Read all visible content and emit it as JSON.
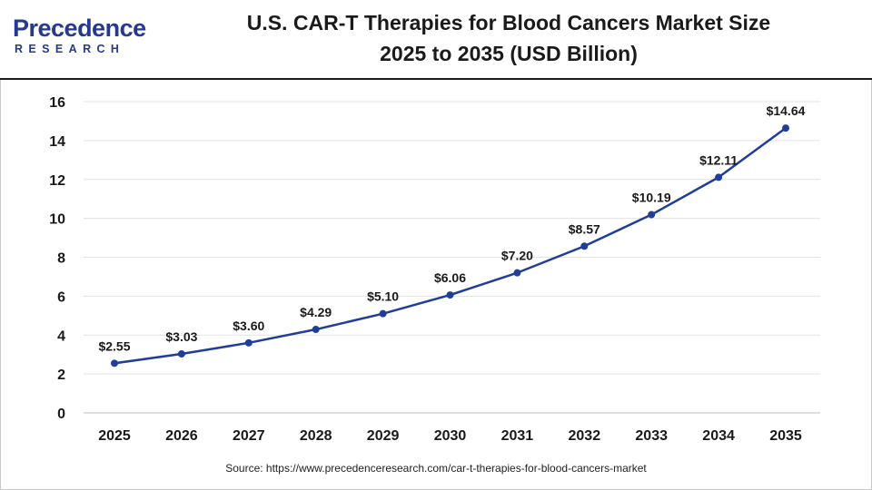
{
  "brand": {
    "name": "Precedence",
    "sub": "RESEARCH",
    "color": "#253a8f"
  },
  "header": {
    "title_line1": "U.S. CAR-T Therapies for Blood Cancers Market Size",
    "title_line2": "2025 to 2035 (USD Billion)"
  },
  "source": "Source: https://www.precedenceresearch.com/car-t-therapies-for-blood-cancers-market",
  "chart_data": {
    "type": "line",
    "title": "U.S. CAR-T Therapies for Blood Cancers Market Size 2025 to 2035 (USD Billion)",
    "xlabel": "",
    "ylabel": "",
    "categories": [
      "2025",
      "2026",
      "2027",
      "2028",
      "2029",
      "2030",
      "2031",
      "2032",
      "2033",
      "2034",
      "2035"
    ],
    "series": [
      {
        "values": [
          2.55,
          3.03,
          3.6,
          4.29,
          5.1,
          6.06,
          7.2,
          8.57,
          10.19,
          12.11,
          14.64
        ],
        "labels": [
          "$2.55",
          "$3.03",
          "$3.60",
          "$4.29",
          "$5.10",
          "$6.06",
          "$7.20",
          "$8.57",
          "$10.19",
          "$12.11",
          "$14.64"
        ],
        "color": "#1f3d99"
      }
    ],
    "ylim": [
      0,
      16
    ],
    "yticks": [
      0,
      2,
      4,
      6,
      8,
      10,
      12,
      14,
      16
    ],
    "grid": true,
    "legend": "none"
  }
}
